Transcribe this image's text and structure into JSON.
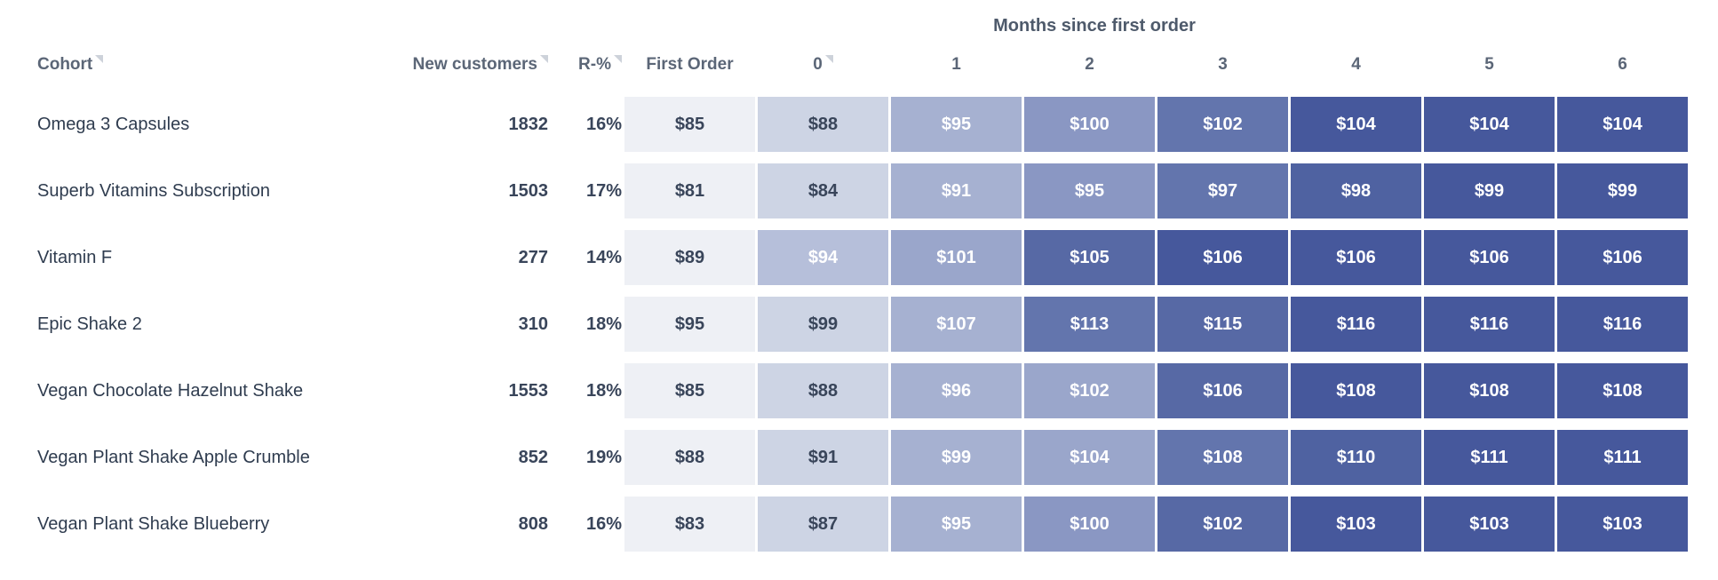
{
  "title": "Months since first order",
  "colors": {
    "page_bg": "#ffffff",
    "title_text": "#4e5a6b",
    "header_text": "#5b6677",
    "cohort_text": "#2f3c4f",
    "number_text": "#39455a",
    "sort_icon": "#cdd2da",
    "first_order_bg": "#eef0f5",
    "heat_scale_light": "#cdd4e4",
    "heat_scale_dark": "#46589c"
  },
  "chart_data": {
    "type": "heatmap",
    "title": "Months since first order",
    "row_labels": [
      "Omega 3 Capsules",
      "Superb Vitamins Subscription",
      "Vitamin F",
      "Epic Shake 2",
      "Vegan Chocolate Hazelnut Shake",
      "Vegan Plant Shake Apple Crumble",
      "Vegan Plant Shake Blueberry"
    ],
    "col_labels": [
      "0",
      "1",
      "2",
      "3",
      "4",
      "5",
      "6"
    ],
    "new_customers": [
      1832,
      1503,
      277,
      310,
      1553,
      852,
      808
    ],
    "retention_pct": [
      16,
      17,
      14,
      18,
      18,
      19,
      16
    ],
    "first_order_usd": [
      85,
      81,
      89,
      95,
      85,
      88,
      83
    ],
    "values_usd": [
      [
        88,
        95,
        100,
        102,
        104,
        104,
        104
      ],
      [
        84,
        91,
        95,
        97,
        98,
        99,
        99
      ],
      [
        94,
        101,
        105,
        106,
        106,
        106,
        106
      ],
      [
        99,
        107,
        113,
        115,
        116,
        116,
        116
      ],
      [
        88,
        96,
        102,
        106,
        108,
        108,
        108
      ],
      [
        91,
        99,
        104,
        108,
        110,
        111,
        111
      ],
      [
        87,
        95,
        100,
        102,
        103,
        103,
        103
      ]
    ]
  },
  "table": {
    "header": {
      "cohort": {
        "label": "Cohort",
        "sortable": true
      },
      "new_customers": {
        "label": "New customers",
        "sortable": true
      },
      "retention": {
        "label": "R-%",
        "sortable": true
      },
      "first_order": {
        "label": "First Order",
        "sortable": false
      },
      "months": [
        {
          "label": "0",
          "sortable": true
        },
        {
          "label": "1",
          "sortable": false
        },
        {
          "label": "2",
          "sortable": false
        },
        {
          "label": "3",
          "sortable": false
        },
        {
          "label": "4",
          "sortable": false
        },
        {
          "label": "5",
          "sortable": false
        },
        {
          "label": "6",
          "sortable": false
        }
      ]
    },
    "rows": [
      {
        "cohort": "Omega 3 Capsules",
        "new_customers": "1832",
        "retention": "16%",
        "first_order": "$85",
        "months": [
          {
            "value": "$88",
            "bg": "#cdd4e4",
            "fg": "#39455a"
          },
          {
            "value": "$95",
            "bg": "#a6b1d1",
            "fg": "#ffffff"
          },
          {
            "value": "$100",
            "bg": "#8a97c3",
            "fg": "#ffffff"
          },
          {
            "value": "$102",
            "bg": "#6375ad",
            "fg": "#ffffff"
          },
          {
            "value": "$104",
            "bg": "#46589c",
            "fg": "#ffffff"
          },
          {
            "value": "$104",
            "bg": "#46589c",
            "fg": "#ffffff"
          },
          {
            "value": "$104",
            "bg": "#46589c",
            "fg": "#ffffff"
          }
        ]
      },
      {
        "cohort": "Superb Vitamins Subscription",
        "new_customers": "1503",
        "retention": "17%",
        "first_order": "$81",
        "months": [
          {
            "value": "$84",
            "bg": "#cdd4e4",
            "fg": "#39455a"
          },
          {
            "value": "$91",
            "bg": "#a6b1d1",
            "fg": "#ffffff"
          },
          {
            "value": "$95",
            "bg": "#8a97c3",
            "fg": "#ffffff"
          },
          {
            "value": "$97",
            "bg": "#6375ad",
            "fg": "#ffffff"
          },
          {
            "value": "$98",
            "bg": "#4f62a1",
            "fg": "#ffffff"
          },
          {
            "value": "$99",
            "bg": "#46589c",
            "fg": "#ffffff"
          },
          {
            "value": "$99",
            "bg": "#46589c",
            "fg": "#ffffff"
          }
        ]
      },
      {
        "cohort": "Vitamin F",
        "new_customers": "277",
        "retention": "14%",
        "first_order": "$89",
        "months": [
          {
            "value": "$94",
            "bg": "#b6bfda",
            "fg": "#ffffff"
          },
          {
            "value": "$101",
            "bg": "#9aa6cb",
            "fg": "#ffffff"
          },
          {
            "value": "$105",
            "bg": "#5769a5",
            "fg": "#ffffff"
          },
          {
            "value": "$106",
            "bg": "#46589c",
            "fg": "#ffffff"
          },
          {
            "value": "$106",
            "bg": "#46589c",
            "fg": "#ffffff"
          },
          {
            "value": "$106",
            "bg": "#46589c",
            "fg": "#ffffff"
          },
          {
            "value": "$106",
            "bg": "#46589c",
            "fg": "#ffffff"
          }
        ]
      },
      {
        "cohort": "Epic Shake 2",
        "new_customers": "310",
        "retention": "18%",
        "first_order": "$95",
        "months": [
          {
            "value": "$99",
            "bg": "#cdd4e4",
            "fg": "#39455a"
          },
          {
            "value": "$107",
            "bg": "#a6b1d1",
            "fg": "#ffffff"
          },
          {
            "value": "$113",
            "bg": "#6375ad",
            "fg": "#ffffff"
          },
          {
            "value": "$115",
            "bg": "#5769a5",
            "fg": "#ffffff"
          },
          {
            "value": "$116",
            "bg": "#46589c",
            "fg": "#ffffff"
          },
          {
            "value": "$116",
            "bg": "#46589c",
            "fg": "#ffffff"
          },
          {
            "value": "$116",
            "bg": "#46589c",
            "fg": "#ffffff"
          }
        ]
      },
      {
        "cohort": "Vegan Chocolate Hazelnut Shake",
        "new_customers": "1553",
        "retention": "18%",
        "first_order": "$85",
        "months": [
          {
            "value": "$88",
            "bg": "#cdd4e4",
            "fg": "#39455a"
          },
          {
            "value": "$96",
            "bg": "#a6b1d1",
            "fg": "#ffffff"
          },
          {
            "value": "$102",
            "bg": "#9aa6cb",
            "fg": "#ffffff"
          },
          {
            "value": "$106",
            "bg": "#5769a5",
            "fg": "#ffffff"
          },
          {
            "value": "$108",
            "bg": "#46589c",
            "fg": "#ffffff"
          },
          {
            "value": "$108",
            "bg": "#46589c",
            "fg": "#ffffff"
          },
          {
            "value": "$108",
            "bg": "#46589c",
            "fg": "#ffffff"
          }
        ]
      },
      {
        "cohort": "Vegan Plant Shake Apple Crumble",
        "new_customers": "852",
        "retention": "19%",
        "first_order": "$88",
        "months": [
          {
            "value": "$91",
            "bg": "#cdd4e4",
            "fg": "#39455a"
          },
          {
            "value": "$99",
            "bg": "#a6b1d1",
            "fg": "#ffffff"
          },
          {
            "value": "$104",
            "bg": "#9aa6cb",
            "fg": "#ffffff"
          },
          {
            "value": "$108",
            "bg": "#6375ad",
            "fg": "#ffffff"
          },
          {
            "value": "$110",
            "bg": "#4f62a1",
            "fg": "#ffffff"
          },
          {
            "value": "$111",
            "bg": "#46589c",
            "fg": "#ffffff"
          },
          {
            "value": "$111",
            "bg": "#46589c",
            "fg": "#ffffff"
          }
        ]
      },
      {
        "cohort": "Vegan Plant Shake Blueberry",
        "new_customers": "808",
        "retention": "16%",
        "first_order": "$83",
        "months": [
          {
            "value": "$87",
            "bg": "#cdd4e4",
            "fg": "#39455a"
          },
          {
            "value": "$95",
            "bg": "#a6b1d1",
            "fg": "#ffffff"
          },
          {
            "value": "$100",
            "bg": "#8a97c3",
            "fg": "#ffffff"
          },
          {
            "value": "$102",
            "bg": "#5769a5",
            "fg": "#ffffff"
          },
          {
            "value": "$103",
            "bg": "#46589c",
            "fg": "#ffffff"
          },
          {
            "value": "$103",
            "bg": "#46589c",
            "fg": "#ffffff"
          },
          {
            "value": "$103",
            "bg": "#46589c",
            "fg": "#ffffff"
          }
        ]
      }
    ]
  }
}
